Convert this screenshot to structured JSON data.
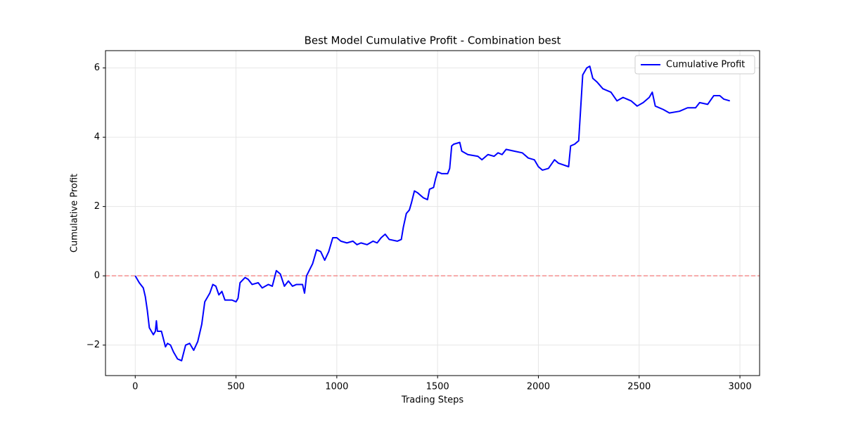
{
  "chart_data": {
    "type": "line",
    "title": "Best Model Cumulative Profit - Combination best",
    "xlabel": "Trading Steps",
    "ylabel": "Cumulative Profit",
    "x": [
      0,
      20,
      40,
      50,
      60,
      70,
      90,
      100,
      105,
      110,
      130,
      150,
      160,
      175,
      190,
      210,
      230,
      250,
      270,
      290,
      310,
      330,
      345,
      370,
      385,
      400,
      415,
      430,
      445,
      480,
      500,
      510,
      520,
      545,
      560,
      580,
      610,
      630,
      660,
      680,
      700,
      720,
      740,
      760,
      780,
      800,
      830,
      840,
      850,
      880,
      900,
      920,
      940,
      960,
      980,
      1000,
      1020,
      1050,
      1080,
      1100,
      1120,
      1150,
      1180,
      1200,
      1220,
      1240,
      1260,
      1300,
      1320,
      1330,
      1345,
      1360,
      1370,
      1385,
      1400,
      1430,
      1450,
      1460,
      1480,
      1490,
      1500,
      1520,
      1550,
      1560,
      1570,
      1580,
      1610,
      1620,
      1650,
      1700,
      1720,
      1750,
      1780,
      1800,
      1820,
      1840,
      1880,
      1920,
      1950,
      1980,
      2000,
      2020,
      2050,
      2080,
      2100,
      2150,
      2160,
      2180,
      2200,
      2220,
      2240,
      2255,
      2270,
      2290,
      2320,
      2360,
      2390,
      2420,
      2460,
      2490,
      2520,
      2550,
      2565,
      2580,
      2620,
      2650,
      2700,
      2740,
      2780,
      2800,
      2840,
      2870,
      2900,
      2920,
      2950
    ],
    "series": [
      {
        "name": "Cumulative Profit",
        "color": "#0000ff",
        "values": [
          0,
          -0.2,
          -0.35,
          -0.6,
          -1.0,
          -1.5,
          -1.7,
          -1.6,
          -1.3,
          -1.6,
          -1.6,
          -2.05,
          -1.95,
          -2.0,
          -2.2,
          -2.4,
          -2.45,
          -2.0,
          -1.95,
          -2.15,
          -1.9,
          -1.4,
          -0.75,
          -0.5,
          -0.25,
          -0.3,
          -0.55,
          -0.45,
          -0.7,
          -0.7,
          -0.75,
          -0.65,
          -0.2,
          -0.05,
          -0.1,
          -0.25,
          -0.2,
          -0.35,
          -0.25,
          -0.3,
          0.15,
          0.05,
          -0.3,
          -0.15,
          -0.3,
          -0.25,
          -0.25,
          -0.5,
          0.0,
          0.35,
          0.75,
          0.7,
          0.45,
          0.7,
          1.1,
          1.1,
          1.0,
          0.95,
          1.0,
          0.9,
          0.95,
          0.9,
          1.0,
          0.95,
          1.1,
          1.2,
          1.05,
          1.0,
          1.05,
          1.4,
          1.8,
          1.9,
          2.1,
          2.45,
          2.4,
          2.25,
          2.2,
          2.5,
          2.55,
          2.8,
          3.0,
          2.95,
          2.95,
          3.1,
          3.75,
          3.8,
          3.85,
          3.6,
          3.5,
          3.45,
          3.35,
          3.5,
          3.45,
          3.55,
          3.5,
          3.65,
          3.6,
          3.55,
          3.4,
          3.35,
          3.15,
          3.05,
          3.1,
          3.35,
          3.25,
          3.15,
          3.75,
          3.8,
          3.9,
          5.8,
          6.0,
          6.05,
          5.7,
          5.6,
          5.4,
          5.3,
          5.05,
          5.15,
          5.05,
          4.9,
          5.0,
          5.15,
          5.3,
          4.9,
          4.8,
          4.7,
          4.75,
          4.85,
          4.85,
          5.0,
          4.95,
          5.2,
          5.2,
          5.1,
          5.05
        ]
      }
    ],
    "hline": {
      "y": 0,
      "color": "#ff0000",
      "dashed": true
    },
    "xlim": [
      -147.5,
      3097.5
    ],
    "xticks": [
      0,
      500,
      1000,
      1500,
      2000,
      2500,
      3000
    ],
    "ylim": [
      -2.88,
      6.5
    ],
    "yticks": [
      {
        "value": -2,
        "label": "−2"
      },
      0,
      2,
      4,
      6
    ],
    "grid": true,
    "legend": "upper-right"
  }
}
